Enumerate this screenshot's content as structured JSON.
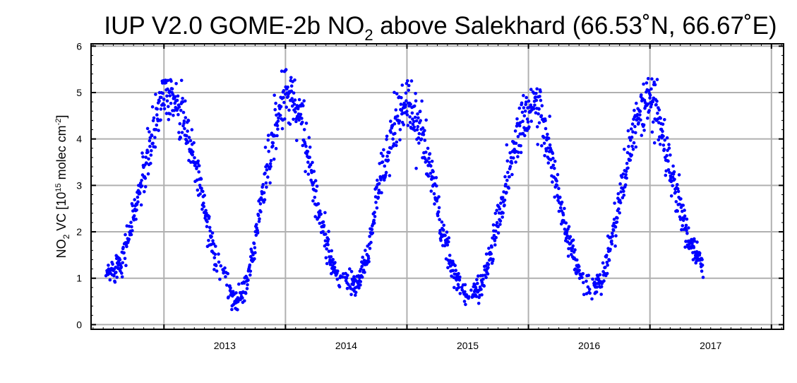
{
  "chart_data": {
    "type": "scatter",
    "title": {
      "prefix": "IUP V2.0 GOME-2b NO",
      "sub": "2",
      "suffix": " above Salekhard (66.53˚N, 66.67˚E)"
    },
    "ylabel": {
      "a": "NO",
      "a_sub": "2",
      "b": " VC  [10",
      "b_sup": "15",
      "c": " molec cm",
      "c_sup": "-2",
      "d": "]"
    },
    "xlabel": "",
    "x_tick_labels": [
      "2013",
      "2014",
      "2015",
      "2016",
      "2017"
    ],
    "y_tick_labels": [
      "0",
      "1",
      "2",
      "3",
      "4",
      "5",
      "6"
    ],
    "xlim": [
      2012.4,
      2018.1
    ],
    "ylim": [
      -0.1,
      6.05
    ],
    "grid": true,
    "marker_color": "#0000ff",
    "seasonal_cycle": {
      "x_range": [
        2012.52,
        2017.44
      ],
      "peaks": [
        {
          "year": 2013,
          "max": 5.3
        },
        {
          "year": 2014,
          "max": 5.5
        },
        {
          "year": 2015,
          "max": 5.3
        },
        {
          "year": 2016,
          "max": 5.2
        },
        {
          "year": 2017,
          "max": 5.5
        }
      ],
      "winter_minimum": 0.3,
      "series_x": [
        2012.52,
        2012.58,
        2012.65,
        2012.72,
        2012.8,
        2012.88,
        2012.95,
        2013.0,
        2013.05,
        2013.12,
        2013.2,
        2013.28,
        2013.36,
        2013.44,
        2013.52,
        2013.6,
        2013.68,
        2013.76,
        2013.84,
        2013.92,
        2014.0,
        2014.06,
        2014.12,
        2014.2,
        2014.28,
        2014.36,
        2014.44,
        2014.52,
        2014.6,
        2014.68,
        2014.76,
        2014.84,
        2014.92,
        2015.0,
        2015.05,
        2015.12,
        2015.2,
        2015.28,
        2015.36,
        2015.44,
        2015.52,
        2015.6,
        2015.68,
        2015.76,
        2015.84,
        2015.92,
        2016.0,
        2016.05,
        2016.12,
        2016.2,
        2016.28,
        2016.36,
        2016.44,
        2016.52,
        2016.6,
        2016.68,
        2016.76,
        2016.84,
        2016.92,
        2017.0,
        2017.05,
        2017.12,
        2017.2,
        2017.28,
        2017.36,
        2017.44
      ],
      "series_y": [
        1.0,
        1.2,
        1.4,
        2.0,
        2.9,
        3.7,
        4.6,
        5.1,
        5.0,
        4.8,
        4.0,
        3.2,
        2.2,
        1.4,
        0.9,
        0.5,
        0.9,
        2.0,
        3.3,
        4.3,
        5.0,
        4.9,
        4.6,
        3.5,
        2.3,
        1.5,
        1.0,
        0.9,
        0.9,
        1.5,
        2.8,
        3.8,
        4.5,
        4.8,
        4.5,
        4.1,
        3.3,
        2.1,
        1.3,
        0.8,
        0.6,
        0.8,
        1.4,
        2.4,
        3.3,
        4.2,
        4.7,
        4.8,
        4.3,
        3.4,
        2.3,
        1.5,
        1.0,
        0.8,
        0.9,
        1.8,
        2.8,
        3.8,
        4.6,
        4.8,
        4.8,
        3.8,
        3.0,
        2.2,
        1.6,
        1.2
      ]
    }
  }
}
